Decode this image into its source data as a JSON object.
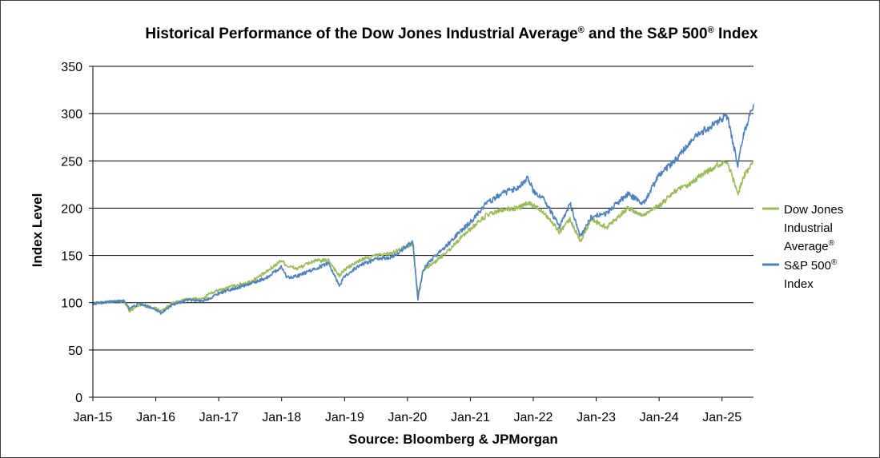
{
  "chart_data": {
    "type": "line",
    "title": "Historical  Performance of the Dow Jones Industrial Average",
    "title_mid": " and the S&P 500",
    "title_end": " Index",
    "title_sup": "®",
    "xlabel": "Source: Bloomberg & JPMorgan",
    "ylabel": "Index Level",
    "ylim": [
      0,
      350
    ],
    "yticks": [
      "0",
      "50",
      "100",
      "150",
      "200",
      "250",
      "300",
      "350"
    ],
    "xticks": [
      "Jan-15",
      "Jan-16",
      "Jan-17",
      "Jan-18",
      "Jan-19",
      "Jan-20",
      "Jan-21",
      "Jan-22",
      "Jan-23",
      "Jan-24",
      "Jan-25"
    ],
    "xlim": [
      "2015-01",
      "2025-07"
    ],
    "grid": true,
    "legend_position": "right",
    "legend": {
      "dow_line1": "Dow Jones",
      "dow_line2": "Industrial",
      "dow_line3": "Average",
      "sp_line1": "S&P 500",
      "sp_line2": "Index",
      "sup": "®"
    },
    "x": [
      "2015-01",
      "2015-04",
      "2015-07",
      "2015-08",
      "2015-10",
      "2016-01",
      "2016-02",
      "2016-04",
      "2016-07",
      "2016-10",
      "2016-11",
      "2017-01",
      "2017-04",
      "2017-07",
      "2017-10",
      "2018-01",
      "2018-02",
      "2018-04",
      "2018-07",
      "2018-10",
      "2018-12",
      "2019-01",
      "2019-04",
      "2019-07",
      "2019-10",
      "2020-01",
      "2020-02",
      "2020-03",
      "2020-04",
      "2020-06",
      "2020-09",
      "2020-11",
      "2021-01",
      "2021-04",
      "2021-07",
      "2021-10",
      "2021-12",
      "2022-01",
      "2022-03",
      "2022-06",
      "2022-08",
      "2022-10",
      "2022-12",
      "2023-03",
      "2023-07",
      "2023-10",
      "2023-12",
      "2024-01",
      "2024-04",
      "2024-07",
      "2024-09",
      "2024-12",
      "2025-02",
      "2025-04",
      "2025-05",
      "2025-07"
    ],
    "series": [
      {
        "name": "Dow Jones Industrial Average®",
        "color": "#9BBB59",
        "values": [
          99,
          101,
          101,
          91,
          98,
          94,
          91,
          99,
          104,
          104,
          109,
          113,
          118,
          122,
          132,
          145,
          139,
          136,
          144,
          145,
          128,
          135,
          145,
          150,
          152,
          160,
          162,
          108,
          135,
          142,
          156,
          168,
          178,
          192,
          198,
          200,
          205,
          203,
          196,
          175,
          188,
          165,
          188,
          180,
          200,
          192,
          201,
          202,
          218,
          225,
          235,
          245,
          250,
          215,
          232,
          250
        ]
      },
      {
        "name": "S&P 500® Index",
        "color": "#4F81BD",
        "values": [
          99,
          101,
          102,
          94,
          99,
          93,
          89,
          97,
          103,
          102,
          104,
          110,
          115,
          120,
          126,
          138,
          127,
          128,
          135,
          142,
          118,
          128,
          140,
          146,
          148,
          160,
          165,
          104,
          135,
          148,
          163,
          175,
          185,
          205,
          215,
          222,
          232,
          218,
          210,
          180,
          205,
          170,
          190,
          195,
          215,
          205,
          225,
          235,
          250,
          270,
          280,
          290,
          298,
          245,
          275,
          310
        ]
      }
    ]
  }
}
